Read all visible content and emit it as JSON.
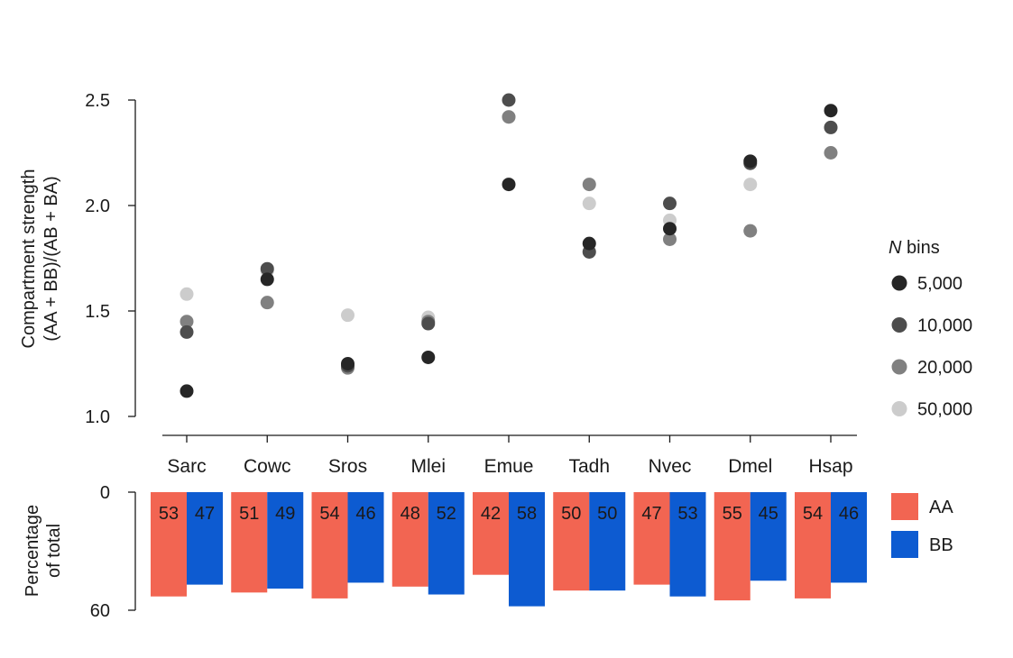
{
  "chart_data": [
    {
      "type": "scatter",
      "ylabel_line1": "Compartment strength",
      "ylabel_line2": "(AA + BB)/(AB + BA)",
      "ylim": [
        1.0,
        2.5
      ],
      "yticks": [
        "1.0",
        "1.5",
        "2.0",
        "2.5"
      ],
      "categories": [
        "Sarc",
        "Cowc",
        "Sros",
        "Mlei",
        "Emue",
        "Tadh",
        "Nvec",
        "Dmel",
        "Hsap"
      ],
      "legend_title_italic": "N",
      "legend_title_rest": " bins",
      "series": [
        {
          "name": "5,000",
          "color": "#262626",
          "values": [
            1.12,
            1.65,
            1.25,
            1.28,
            2.1,
            1.82,
            1.89,
            2.21,
            2.45
          ]
        },
        {
          "name": "10,000",
          "color": "#4d4d4d",
          "values": [
            1.4,
            1.7,
            1.24,
            1.44,
            2.5,
            1.78,
            2.01,
            2.2,
            2.37
          ]
        },
        {
          "name": "20,000",
          "color": "#808080",
          "values": [
            1.45,
            1.54,
            1.23,
            1.45,
            2.42,
            2.1,
            1.84,
            1.88,
            2.25
          ]
        },
        {
          "name": "50,000",
          "color": "#cccccc",
          "values": [
            1.58,
            1.69,
            1.48,
            1.47,
            2.42,
            2.01,
            1.93,
            2.1,
            2.37
          ]
        }
      ]
    },
    {
      "type": "bar",
      "ylabel_line1": "Percentage",
      "ylabel_line2": "of total",
      "ylim": [
        0,
        60
      ],
      "yticks": [
        "0",
        "60"
      ],
      "categories": [
        "Sarc",
        "Cowc",
        "Sros",
        "Mlei",
        "Emue",
        "Tadh",
        "Nvec",
        "Dmel",
        "Hsap"
      ],
      "series": [
        {
          "name": "AA",
          "color": "#f26552",
          "values": [
            53,
            51,
            54,
            48,
            42,
            50,
            47,
            55,
            54
          ]
        },
        {
          "name": "BB",
          "color": "#0d5bd1",
          "values": [
            47,
            49,
            46,
            52,
            58,
            50,
            53,
            45,
            46
          ]
        }
      ]
    }
  ]
}
